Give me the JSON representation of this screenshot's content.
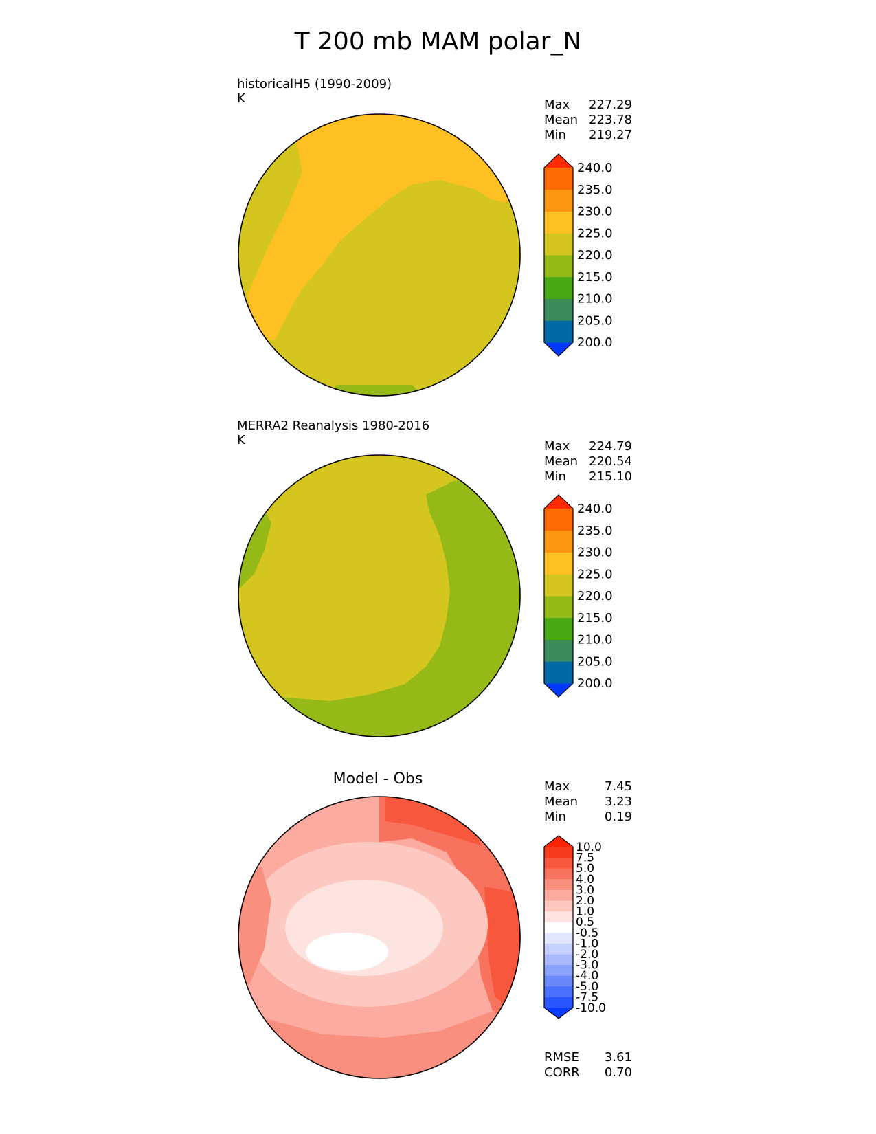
{
  "title": "T 200 mb MAM polar_N",
  "panels": [
    {
      "label_line1": "historicalH5 (1990-2009)",
      "label_line2": "K",
      "stats": [
        {
          "name": "Max",
          "value": "227.29"
        },
        {
          "name": "Mean",
          "value": "223.78"
        },
        {
          "name": "Min",
          "value": "219.27"
        }
      ],
      "colorbar": {
        "colors": [
          "#0039ff",
          "#0068a3",
          "#3b8a5e",
          "#47a814",
          "#95ba18",
          "#d4c61e",
          "#fec023",
          "#fd9712",
          "#fd6b07",
          "#fe2c00"
        ],
        "ticks": [
          "200.0",
          "205.0",
          "210.0",
          "215.0",
          "220.0",
          "225.0",
          "230.0",
          "235.0",
          "240.0"
        ]
      }
    },
    {
      "label_line1": "MERRA2 Reanalysis 1980-2016",
      "label_line2": "K",
      "stats": [
        {
          "name": "Max",
          "value": "224.79"
        },
        {
          "name": "Mean",
          "value": "220.54"
        },
        {
          "name": "Min",
          "value": "215.10"
        }
      ],
      "colorbar": {
        "colors": [
          "#0039ff",
          "#0068a3",
          "#3b8a5e",
          "#47a814",
          "#95ba18",
          "#d4c61e",
          "#fec023",
          "#fd9712",
          "#fd6b07",
          "#fe2c00"
        ],
        "ticks": [
          "200.0",
          "205.0",
          "210.0",
          "215.0",
          "220.0",
          "225.0",
          "230.0",
          "235.0",
          "240.0"
        ]
      }
    },
    {
      "title": "Model - Obs",
      "stats": [
        {
          "name": "Max",
          "value": "7.45"
        },
        {
          "name": "Mean",
          "value": "3.23"
        },
        {
          "name": "Min",
          "value": "0.19"
        }
      ],
      "extra_stats": [
        {
          "name": "RMSE",
          "value": "3.61"
        },
        {
          "name": "CORR",
          "value": "0.70"
        }
      ],
      "colorbar": {
        "colors": [
          "#0a3cff",
          "#2a55fe",
          "#4a6ffd",
          "#6b88fb",
          "#8ba2fa",
          "#a9b9fb",
          "#c6d0fc",
          "#e1e6fd",
          "#ffffff",
          "#fde4e0",
          "#fcc8c0",
          "#fbab9f",
          "#f98f7e",
          "#f8735e",
          "#f6573d",
          "#f53b1d",
          "#fe2400"
        ],
        "ticks": [
          "-10.0",
          "-7.5",
          "-5.0",
          "-4.0",
          "-3.0",
          "-2.0",
          "-1.0",
          "-0.5",
          "0.5",
          "1.0",
          "2.0",
          "3.0",
          "4.0",
          "5.0",
          "7.5",
          "10.0"
        ]
      }
    }
  ]
}
